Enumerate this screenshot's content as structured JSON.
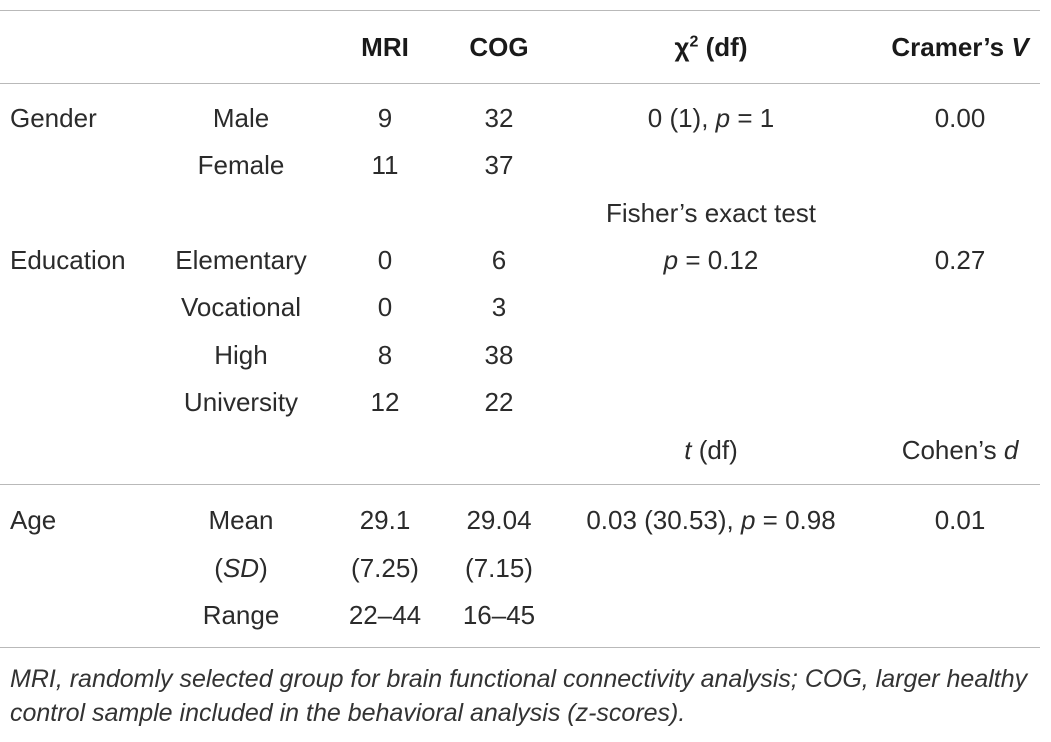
{
  "header": {
    "mri": "MRI",
    "cog": "COG",
    "chi": "χ",
    "chi_sup": "2",
    "chi_df": " (df)",
    "cramer": "Cramer’s ",
    "cramer_v": "V"
  },
  "gender": {
    "label": "Gender",
    "rows": [
      {
        "category": "Male",
        "mri": "9",
        "cog": "32"
      },
      {
        "category": "Female",
        "mri": "11",
        "cog": "37"
      }
    ],
    "stat_prefix": "0 (1), ",
    "stat_p": "p",
    "stat_suffix": " = 1",
    "effect": "0.00"
  },
  "education": {
    "label": "Education",
    "test_name": "Fisher’s exact test",
    "rows": [
      {
        "category": "Elementary",
        "mri": "0",
        "cog": "6"
      },
      {
        "category": "Vocational",
        "mri": "0",
        "cog": "3"
      },
      {
        "category": "High",
        "mri": "8",
        "cog": "38"
      },
      {
        "category": "University",
        "mri": "12",
        "cog": "22"
      }
    ],
    "stat_p": "p",
    "stat_suffix": " = 0.12",
    "effect": "0.27"
  },
  "subheader": {
    "t": "t",
    "t_df": " (df)",
    "cohen": "Cohen’s ",
    "cohen_d": "d"
  },
  "age": {
    "label": "Age",
    "mean_label": "Mean",
    "mean_mri": "29.1",
    "mean_cog": "29.04",
    "sd_open": "(",
    "sd_label": "SD",
    "sd_close": ")",
    "sd_mri": "(7.25)",
    "sd_cog": "(7.15)",
    "range_label": "Range",
    "range_mri": "22–44",
    "range_cog": "16–45",
    "stat_prefix": "0.03 (30.53), ",
    "stat_p": "p",
    "stat_suffix": " = 0.98",
    "effect": "0.01"
  },
  "footnote": "MRI, randomly selected group for brain functional connectivity analysis; COG, larger healthy control sample included in the behavioral analysis (z-scores)."
}
